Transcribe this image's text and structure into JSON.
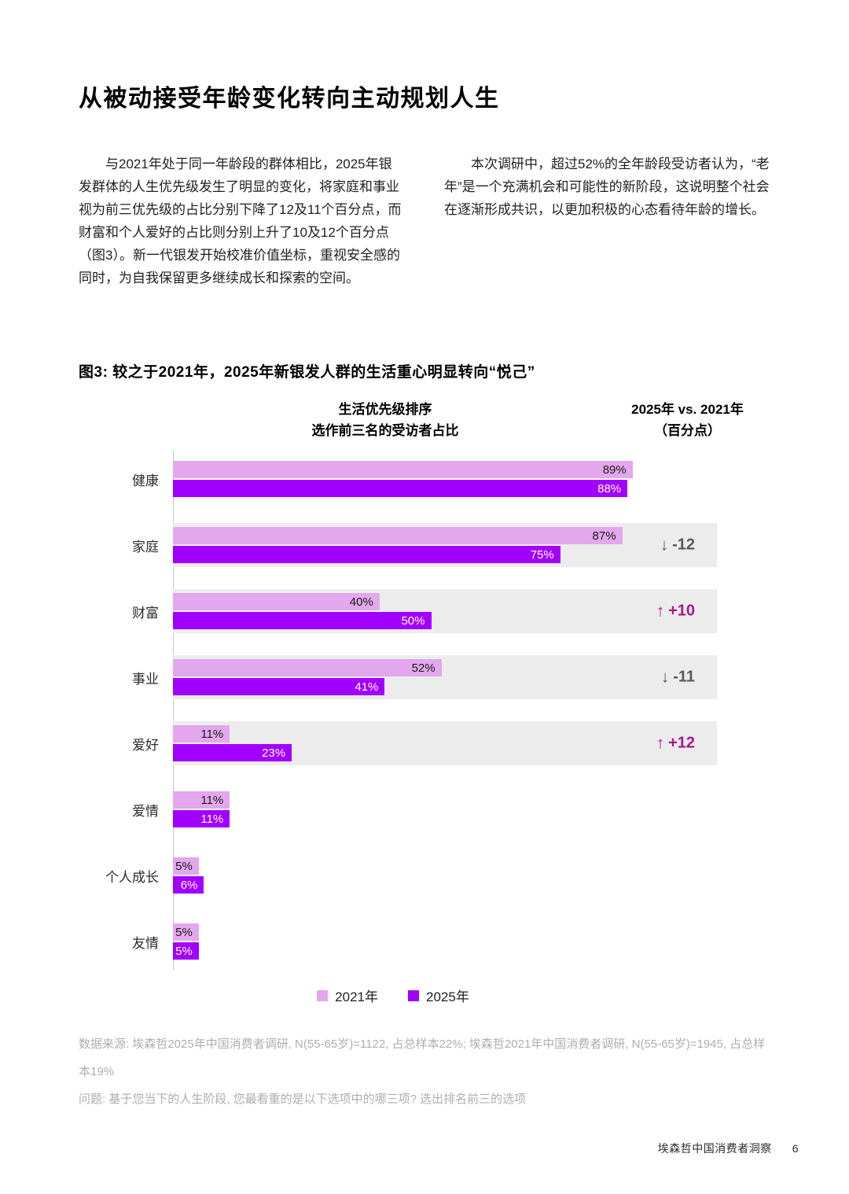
{
  "header": {
    "title": "从被动接受年龄变化转向主动规划人生"
  },
  "body": {
    "left": "与2021年处于同一年龄段的群体相比，2025年银发群体的人生优先级发生了明显的变化，将家庭和事业视为前三优先级的占比分别下降了12及11个百分点，而财富和个人爱好的占比则分别上升了10及12个百分点（图3）。新一代银发开始校准价值坐标，重视安全感的同时，为自我保留更多继续成长和探索的空间。",
    "right": "本次调研中，超过52%的全年龄段受访者认为，“老年”是一个充满机会和可能性的新阶段，这说明整个社会在逐渐形成共识，以更加积极的心态看待年龄的增长。"
  },
  "figure": {
    "caption": "图3: 较之于2021年，2025年新银发人群的生活重心明显转向“悦己”"
  },
  "chart_data": {
    "type": "bar",
    "orientation": "horizontal",
    "header_left": [
      "生活优先级排序",
      "选作前三名的受访者占比"
    ],
    "header_right": [
      "2025年 vs. 2021年",
      "（百分点）"
    ],
    "categories": [
      "健康",
      "家庭",
      "财富",
      "事业",
      "爱好",
      "爱情",
      "个人成长",
      "友情"
    ],
    "series": [
      {
        "name": "2021年",
        "color": "#E2A7EC",
        "values": [
          89,
          87,
          40,
          52,
          11,
          11,
          5,
          5
        ]
      },
      {
        "name": "2025年",
        "color": "#A100FF",
        "values": [
          88,
          75,
          50,
          41,
          23,
          11,
          6,
          5
        ]
      }
    ],
    "changes": [
      null,
      -12,
      10,
      -11,
      12,
      null,
      null,
      null
    ],
    "xlim": [
      0,
      100
    ],
    "value_suffix": "%",
    "legend_position": "bottom",
    "colors": {
      "positive_change": "#A81690",
      "negative_change": "#595959",
      "row_track": "#ECECEC",
      "axis_line": "#C4C4C4"
    }
  },
  "notes": {
    "source": "数据来源: 埃森哲2025年中国消费者调研, N(55-65岁)=1122, 占总样本22%; 埃森哲2021年中国消费者调研, N(55-65岁)=1945, 占总样本19%",
    "question": "问题: 基于您当下的人生阶段, 您最看重的是以下选项中的哪三项? 选出排名前三的选项"
  },
  "footer": {
    "brand": "埃森哲中国消费者洞察",
    "page": "6"
  }
}
